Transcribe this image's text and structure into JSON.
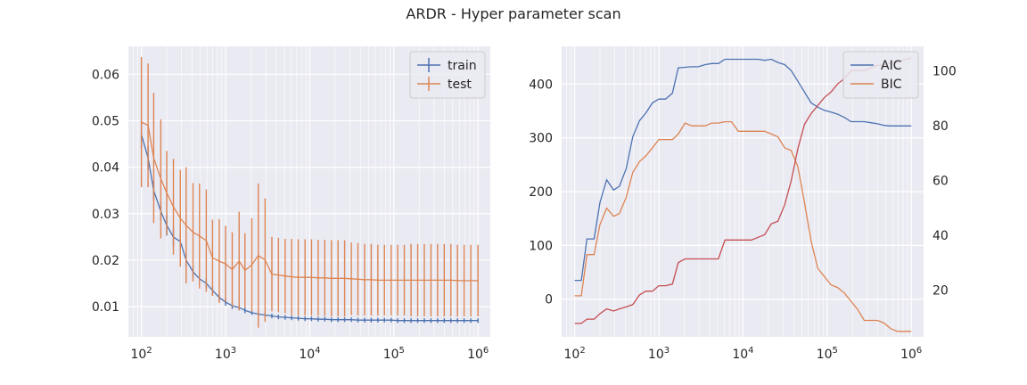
{
  "figure_title": "ARDR - Hyper parameter scan",
  "colors": {
    "blue": "#4c72b0",
    "orange": "#dd8452",
    "red": "#c44e52",
    "panel_bg": "#eaeaf2",
    "grid": "#ffffff"
  },
  "chart_data": [
    {
      "type": "line",
      "title": "",
      "xlabel": "",
      "ylabel": "",
      "xscale": "log",
      "xlim": [
        70,
        1400000
      ],
      "ylim": [
        0.0035,
        0.066
      ],
      "x_tick_labels": [
        "10^2",
        "10^3",
        "10^4",
        "10^5",
        "10^6"
      ],
      "y_ticks": [
        0.01,
        0.02,
        0.03,
        0.04,
        0.05,
        0.06
      ],
      "y_tick_labels": [
        "0.01",
        "0.02",
        "0.03",
        "0.04",
        "0.05",
        "0.06"
      ],
      "grid": true,
      "legend": "upper right",
      "x": [
        100,
        120,
        140,
        170,
        200,
        240,
        290,
        340,
        410,
        490,
        590,
        700,
        840,
        1000,
        1200,
        1450,
        1700,
        2050,
        2450,
        2950,
        3550,
        4250,
        5100,
        6100,
        7300,
        8800,
        10500,
        12600,
        15100,
        18100,
        21700,
        26000,
        31200,
        37400,
        44900,
        53800,
        64500,
        77300,
        92700,
        111000,
        133000,
        160000,
        192000,
        230000,
        276000,
        331000,
        397000,
        476000,
        570000,
        684000,
        820000,
        1000000
      ],
      "series": [
        {
          "name": "train",
          "color": "#4c72b0",
          "values": [
            0.047,
            0.042,
            0.035,
            0.0305,
            0.0275,
            0.025,
            0.024,
            0.02,
            0.0175,
            0.016,
            0.015,
            0.0135,
            0.012,
            0.011,
            0.0102,
            0.0098,
            0.0092,
            0.0087,
            0.0084,
            0.0082,
            0.008,
            0.0078,
            0.0077,
            0.0076,
            0.0075,
            0.0074,
            0.0074,
            0.0073,
            0.0073,
            0.0072,
            0.0072,
            0.0072,
            0.0072,
            0.0071,
            0.0071,
            0.0071,
            0.0071,
            0.0071,
            0.0071,
            0.007,
            0.007,
            0.007,
            0.007,
            0.007,
            0.007,
            0.007,
            0.007,
            0.007,
            0.007,
            0.007,
            0.007,
            0.007
          ],
          "errors": [
            0.003,
            0.0025,
            0.002,
            0.002,
            0.0022,
            0.002,
            0.0018,
            0.0015,
            0.0013,
            0.0012,
            0.0011,
            0.001,
            0.0009,
            0.0008,
            0.0007,
            0.0006,
            0.0006,
            0.0005,
            0.0005,
            0.0005,
            0.0005,
            0.0005,
            0.0005,
            0.0005,
            0.0005,
            0.0005,
            0.0005,
            0.0005,
            0.0005,
            0.0005,
            0.0005,
            0.0005,
            0.0005,
            0.0005,
            0.0005,
            0.0005,
            0.0005,
            0.0005,
            0.0005,
            0.0005,
            0.0005,
            0.0005,
            0.0005,
            0.0005,
            0.0005,
            0.0005,
            0.0005,
            0.0005,
            0.0005,
            0.0005,
            0.0005,
            0.0005
          ]
        },
        {
          "name": "test",
          "color": "#dd8452",
          "values": [
            0.0497,
            0.049,
            0.042,
            0.0375,
            0.0345,
            0.0315,
            0.029,
            0.0275,
            0.026,
            0.0252,
            0.0242,
            0.0205,
            0.0198,
            0.0192,
            0.018,
            0.0198,
            0.0178,
            0.019,
            0.021,
            0.02,
            0.017,
            0.0168,
            0.0166,
            0.0164,
            0.0163,
            0.0163,
            0.0163,
            0.0162,
            0.0162,
            0.0161,
            0.0161,
            0.0161,
            0.016,
            0.0159,
            0.0158,
            0.0158,
            0.0157,
            0.0157,
            0.0157,
            0.0157,
            0.0157,
            0.0157,
            0.0157,
            0.0157,
            0.0157,
            0.0157,
            0.0157,
            0.0157,
            0.0156,
            0.0156,
            0.0156,
            0.0156
          ],
          "errors": [
            0.014,
            0.0133,
            0.014,
            0.0128,
            0.009,
            0.0103,
            0.0104,
            0.0125,
            0.0106,
            0.0113,
            0.011,
            0.0082,
            0.009,
            0.0082,
            0.008,
            0.0106,
            0.008,
            0.01,
            0.0155,
            0.0133,
            0.008,
            0.008,
            0.008,
            0.0082,
            0.0082,
            0.0082,
            0.0082,
            0.0082,
            0.0082,
            0.0082,
            0.0082,
            0.0082,
            0.0078,
            0.0078,
            0.0077,
            0.0077,
            0.0076,
            0.0076,
            0.0076,
            0.0076,
            0.0076,
            0.0078,
            0.0078,
            0.0078,
            0.0078,
            0.0078,
            0.0078,
            0.0078,
            0.0077,
            0.0077,
            0.0077,
            0.0077
          ]
        }
      ]
    },
    {
      "type": "line",
      "title": "",
      "xlabel": "",
      "ylabel": "",
      "xscale": "log",
      "xlim": [
        70,
        1400000
      ],
      "ylim": [
        -70,
        470
      ],
      "y2lim": [
        3,
        109
      ],
      "x_tick_labels": [
        "10^2",
        "10^3",
        "10^4",
        "10^5",
        "10^6"
      ],
      "y_ticks": [
        0,
        100,
        200,
        300,
        400
      ],
      "y_tick_labels": [
        "0",
        "100",
        "200",
        "300",
        "400"
      ],
      "y2_ticks": [
        20,
        40,
        60,
        80,
        100
      ],
      "y2_tick_labels": [
        "20",
        "40",
        "60",
        "80",
        "100"
      ],
      "grid": true,
      "legend": "upper right",
      "x": [
        100,
        120,
        140,
        170,
        200,
        240,
        290,
        340,
        410,
        490,
        590,
        700,
        840,
        1000,
        1200,
        1450,
        1700,
        2050,
        2450,
        2950,
        3550,
        4250,
        5100,
        6100,
        7300,
        8800,
        10500,
        12600,
        15100,
        18100,
        21700,
        26000,
        31200,
        37400,
        44900,
        53800,
        64500,
        77300,
        92700,
        111000,
        133000,
        160000,
        192000,
        230000,
        276000,
        331000,
        397000,
        476000,
        570000,
        684000,
        820000,
        1000000
      ],
      "series": [
        {
          "name": "AIC",
          "color": "#4c72b0",
          "axis": "left",
          "values": [
            35,
            35,
            112,
            112,
            180,
            222,
            203,
            210,
            243,
            302,
            332,
            346,
            365,
            372,
            372,
            383,
            430,
            431,
            432,
            432,
            436,
            438,
            438,
            446,
            446,
            446,
            446,
            446,
            446,
            444,
            446,
            440,
            436,
            425,
            405,
            385,
            365,
            357,
            351,
            348,
            344,
            338,
            330,
            330,
            330,
            328,
            326,
            323,
            322,
            322,
            322,
            322
          ]
        },
        {
          "name": "BIC",
          "color": "#dd8452",
          "axis": "right",
          "values": [
            18,
            18,
            33,
            33,
            44,
            50,
            47,
            48,
            54,
            63,
            67,
            69,
            72,
            75,
            75,
            75,
            77,
            81,
            80,
            80,
            80,
            81,
            81,
            81.5,
            81.5,
            78,
            78,
            78,
            78,
            78,
            77,
            76,
            72,
            71,
            65,
            52,
            38,
            28,
            25,
            22,
            21,
            19,
            16,
            13,
            9,
            9,
            9,
            8,
            6,
            5,
            5,
            5
          ]
        },
        {
          "name": "",
          "color": "#c44e52",
          "axis": "left",
          "values": [
            -45,
            -45,
            -37,
            -37,
            -27,
            -18,
            -22,
            -18,
            -14,
            -10,
            8,
            15,
            15,
            25,
            25,
            28,
            68,
            75,
            75,
            75,
            75,
            75,
            75,
            110,
            110,
            110,
            110,
            110,
            115,
            120,
            140,
            145,
            175,
            220,
            280,
            325,
            345,
            360,
            375,
            385,
            400,
            410,
            425,
            425,
            425,
            430,
            435,
            435,
            440,
            440,
            445,
            448
          ]
        }
      ]
    }
  ]
}
